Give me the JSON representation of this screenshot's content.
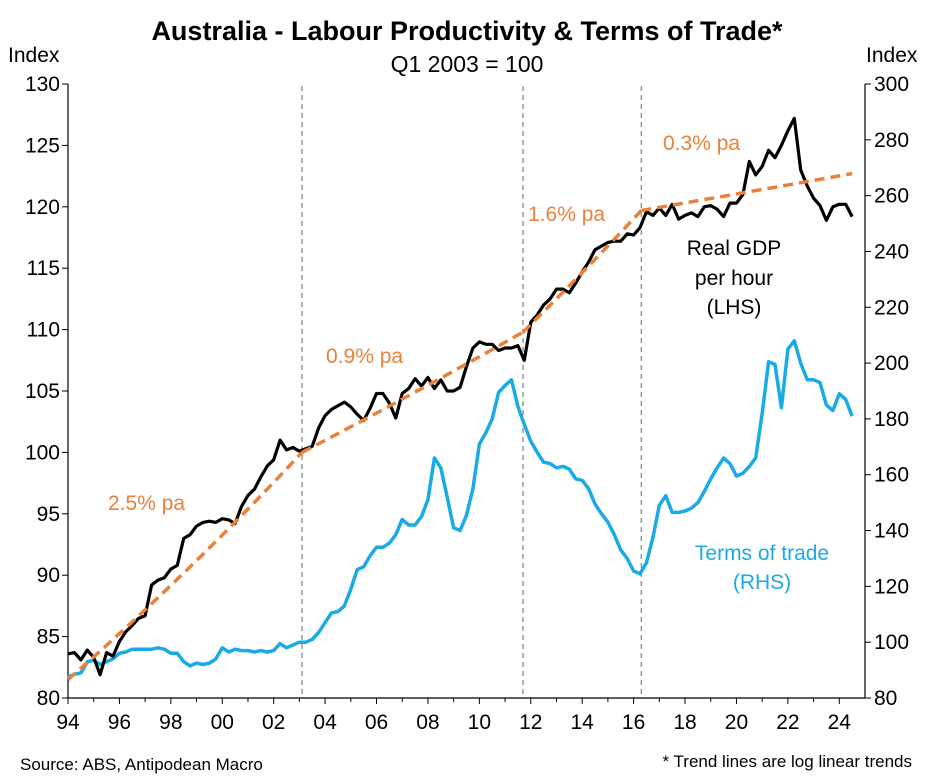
{
  "chart_data": {
    "type": "line",
    "title": "Australia - Labour Productivity & Terms of Trade*",
    "subtitle": "Q1 2003 = 100",
    "left_axis": {
      "unit_label": "Index",
      "min": 80,
      "max": 130,
      "ticks": [
        130,
        125,
        120,
        115,
        110,
        105,
        100,
        95,
        90,
        85,
        80
      ]
    },
    "right_axis": {
      "unit_label": "Index",
      "min": 80,
      "max": 300,
      "ticks": [
        300,
        280,
        260,
        240,
        220,
        200,
        180,
        160,
        140,
        120,
        100,
        80
      ]
    },
    "x_axis": {
      "min": 1994,
      "max": 2025,
      "tick_years": [
        1994,
        1996,
        1998,
        2000,
        2002,
        2004,
        2006,
        2008,
        2010,
        2012,
        2014,
        2016,
        2018,
        2020,
        2022,
        2024
      ],
      "tick_labels": [
        "94",
        "96",
        "98",
        "00",
        "02",
        "04",
        "06",
        "08",
        "10",
        "12",
        "14",
        "16",
        "18",
        "20",
        "22",
        "24"
      ]
    },
    "vertical_breaks": [
      2003.1,
      2011.7,
      2016.3
    ],
    "series": [
      {
        "name": "Real GDP per hour (LHS)",
        "axis": "left",
        "color": "#000000",
        "points": [
          [
            1994.0,
            83.6
          ],
          [
            1994.25,
            83.7
          ],
          [
            1994.5,
            83.1
          ],
          [
            1994.75,
            83.9
          ],
          [
            1995.0,
            83.3
          ],
          [
            1995.25,
            81.9
          ],
          [
            1995.5,
            83.7
          ],
          [
            1995.75,
            83.4
          ],
          [
            1996.0,
            84.6
          ],
          [
            1996.25,
            85.4
          ],
          [
            1996.5,
            85.9
          ],
          [
            1996.75,
            86.5
          ],
          [
            1997.0,
            86.7
          ],
          [
            1997.25,
            89.2
          ],
          [
            1997.5,
            89.6
          ],
          [
            1997.75,
            89.8
          ],
          [
            1998.0,
            90.5
          ],
          [
            1998.25,
            90.8
          ],
          [
            1998.5,
            93.0
          ],
          [
            1998.75,
            93.3
          ],
          [
            1999.0,
            94.0
          ],
          [
            1999.25,
            94.3
          ],
          [
            1999.5,
            94.4
          ],
          [
            1999.75,
            94.3
          ],
          [
            2000.0,
            94.6
          ],
          [
            2000.25,
            94.5
          ],
          [
            2000.5,
            94.2
          ],
          [
            2000.75,
            95.6
          ],
          [
            2001.0,
            96.5
          ],
          [
            2001.25,
            97.0
          ],
          [
            2001.5,
            98.0
          ],
          [
            2001.75,
            98.9
          ],
          [
            2002.0,
            99.4
          ],
          [
            2002.25,
            101.0
          ],
          [
            2002.5,
            100.2
          ],
          [
            2002.75,
            100.4
          ],
          [
            2003.0,
            100.1
          ],
          [
            2003.25,
            100.3
          ],
          [
            2003.5,
            100.5
          ],
          [
            2003.75,
            102.0
          ],
          [
            2004.0,
            103.0
          ],
          [
            2004.25,
            103.5
          ],
          [
            2004.5,
            103.8
          ],
          [
            2004.75,
            104.1
          ],
          [
            2005.0,
            103.7
          ],
          [
            2005.25,
            103.1
          ],
          [
            2005.5,
            102.6
          ],
          [
            2005.75,
            103.6
          ],
          [
            2006.0,
            104.8
          ],
          [
            2006.25,
            104.8
          ],
          [
            2006.5,
            104.0
          ],
          [
            2006.75,
            102.8
          ],
          [
            2007.0,
            104.8
          ],
          [
            2007.25,
            105.2
          ],
          [
            2007.5,
            106.0
          ],
          [
            2007.75,
            105.4
          ],
          [
            2008.0,
            106.1
          ],
          [
            2008.25,
            105.2
          ],
          [
            2008.5,
            105.9
          ],
          [
            2008.75,
            105.0
          ],
          [
            2009.0,
            105.0
          ],
          [
            2009.25,
            105.3
          ],
          [
            2009.5,
            107.0
          ],
          [
            2009.75,
            108.5
          ],
          [
            2010.0,
            109.0
          ],
          [
            2010.25,
            108.8
          ],
          [
            2010.5,
            108.8
          ],
          [
            2010.75,
            108.3
          ],
          [
            2011.0,
            108.5
          ],
          [
            2011.25,
            108.5
          ],
          [
            2011.5,
            108.7
          ],
          [
            2011.75,
            107.5
          ],
          [
            2012.0,
            110.6
          ],
          [
            2012.25,
            111.2
          ],
          [
            2012.5,
            112.0
          ],
          [
            2012.75,
            112.5
          ],
          [
            2013.0,
            113.3
          ],
          [
            2013.25,
            113.3
          ],
          [
            2013.5,
            113.0
          ],
          [
            2013.75,
            113.8
          ],
          [
            2014.0,
            114.7
          ],
          [
            2014.25,
            115.5
          ],
          [
            2014.5,
            116.5
          ],
          [
            2014.75,
            116.8
          ],
          [
            2015.0,
            117.1
          ],
          [
            2015.25,
            117.2
          ],
          [
            2015.5,
            117.2
          ],
          [
            2015.75,
            117.8
          ],
          [
            2016.0,
            117.7
          ],
          [
            2016.25,
            118.3
          ],
          [
            2016.5,
            119.6
          ],
          [
            2016.75,
            119.3
          ],
          [
            2017.0,
            119.9
          ],
          [
            2017.25,
            119.3
          ],
          [
            2017.5,
            120.2
          ],
          [
            2017.75,
            119.0
          ],
          [
            2018.0,
            119.3
          ],
          [
            2018.25,
            119.5
          ],
          [
            2018.5,
            119.2
          ],
          [
            2018.75,
            120.0
          ],
          [
            2019.0,
            120.1
          ],
          [
            2019.25,
            119.8
          ],
          [
            2019.5,
            119.2
          ],
          [
            2019.75,
            120.3
          ],
          [
            2020.0,
            120.3
          ],
          [
            2020.25,
            121.0
          ],
          [
            2020.5,
            123.7
          ],
          [
            2020.75,
            122.6
          ],
          [
            2021.0,
            123.3
          ],
          [
            2021.25,
            124.6
          ],
          [
            2021.5,
            124.0
          ],
          [
            2021.75,
            125.0
          ],
          [
            2022.0,
            126.2
          ],
          [
            2022.25,
            127.2
          ],
          [
            2022.5,
            123.0
          ],
          [
            2022.75,
            121.7
          ],
          [
            2023.0,
            120.7
          ],
          [
            2023.25,
            120.1
          ],
          [
            2023.5,
            118.9
          ],
          [
            2023.75,
            120.0
          ],
          [
            2024.0,
            120.2
          ],
          [
            2024.25,
            120.2
          ],
          [
            2024.5,
            119.2
          ]
        ]
      },
      {
        "name": "Terms of trade (RHS)",
        "axis": "right",
        "color": "#1AAAE6",
        "points": [
          [
            1994.0,
            87.5
          ],
          [
            1994.25,
            88.5
          ],
          [
            1994.5,
            89.0
          ],
          [
            1994.75,
            93.0
          ],
          [
            1995.0,
            93.5
          ],
          [
            1995.25,
            92.0
          ],
          [
            1995.5,
            93.0
          ],
          [
            1995.75,
            94.0
          ],
          [
            1996.0,
            96.0
          ],
          [
            1996.25,
            96.5
          ],
          [
            1996.5,
            97.5
          ],
          [
            1996.75,
            97.5
          ],
          [
            1997.0,
            97.5
          ],
          [
            1997.25,
            97.5
          ],
          [
            1997.5,
            98.0
          ],
          [
            1997.75,
            97.5
          ],
          [
            1998.0,
            96.0
          ],
          [
            1998.25,
            96.0
          ],
          [
            1998.5,
            93.0
          ],
          [
            1998.75,
            91.5
          ],
          [
            1999.0,
            92.5
          ],
          [
            1999.25,
            92.0
          ],
          [
            1999.5,
            92.5
          ],
          [
            1999.75,
            94.0
          ],
          [
            2000.0,
            98.0
          ],
          [
            2000.25,
            96.5
          ],
          [
            2000.5,
            97.5
          ],
          [
            2000.75,
            97.0
          ],
          [
            2001.0,
            97.0
          ],
          [
            2001.25,
            96.5
          ],
          [
            2001.5,
            97.0
          ],
          [
            2001.75,
            96.5
          ],
          [
            2002.0,
            97.0
          ],
          [
            2002.25,
            99.5
          ],
          [
            2002.5,
            98.0
          ],
          [
            2002.75,
            99.0
          ],
          [
            2003.0,
            100.0
          ],
          [
            2003.25,
            100.0
          ],
          [
            2003.5,
            101.0
          ],
          [
            2003.75,
            103.5
          ],
          [
            2004.0,
            107.0
          ],
          [
            2004.25,
            110.5
          ],
          [
            2004.5,
            111.0
          ],
          [
            2004.75,
            113.0
          ],
          [
            2005.0,
            119.0
          ],
          [
            2005.25,
            126.0
          ],
          [
            2005.5,
            127.0
          ],
          [
            2005.75,
            131.0
          ],
          [
            2006.0,
            134.0
          ],
          [
            2006.25,
            134.0
          ],
          [
            2006.5,
            135.5
          ],
          [
            2006.75,
            138.5
          ],
          [
            2007.0,
            144.0
          ],
          [
            2007.25,
            142.0
          ],
          [
            2007.5,
            142.0
          ],
          [
            2007.75,
            145.0
          ],
          [
            2008.0,
            151.0
          ],
          [
            2008.25,
            166.0
          ],
          [
            2008.5,
            162.5
          ],
          [
            2008.75,
            152.0
          ],
          [
            2009.0,
            141.0
          ],
          [
            2009.25,
            140.0
          ],
          [
            2009.5,
            145.5
          ],
          [
            2009.75,
            155.0
          ],
          [
            2010.0,
            171.0
          ],
          [
            2010.25,
            175.0
          ],
          [
            2010.5,
            180.0
          ],
          [
            2010.75,
            189.5
          ],
          [
            2011.0,
            192.0
          ],
          [
            2011.25,
            194.0
          ],
          [
            2011.5,
            184.5
          ],
          [
            2011.75,
            178.0
          ],
          [
            2012.0,
            172.0
          ],
          [
            2012.25,
            168.0
          ],
          [
            2012.5,
            164.5
          ],
          [
            2012.75,
            164.0
          ],
          [
            2013.0,
            162.5
          ],
          [
            2013.25,
            163.0
          ],
          [
            2013.5,
            162.0
          ],
          [
            2013.75,
            158.5
          ],
          [
            2014.0,
            158.0
          ],
          [
            2014.25,
            155.0
          ],
          [
            2014.5,
            149.5
          ],
          [
            2014.75,
            146.0
          ],
          [
            2015.0,
            143.0
          ],
          [
            2015.25,
            138.5
          ],
          [
            2015.5,
            133.0
          ],
          [
            2015.75,
            130.0
          ],
          [
            2016.0,
            125.5
          ],
          [
            2016.25,
            124.5
          ],
          [
            2016.5,
            128.5
          ],
          [
            2016.75,
            137.5
          ],
          [
            2017.0,
            149.0
          ],
          [
            2017.25,
            152.5
          ],
          [
            2017.5,
            146.5
          ],
          [
            2017.75,
            146.5
          ],
          [
            2018.0,
            147.0
          ],
          [
            2018.25,
            148.0
          ],
          [
            2018.5,
            150.0
          ],
          [
            2018.75,
            154.0
          ],
          [
            2019.0,
            158.5
          ],
          [
            2019.25,
            162.5
          ],
          [
            2019.5,
            166.0
          ],
          [
            2019.75,
            164.0
          ],
          [
            2020.0,
            159.5
          ],
          [
            2020.25,
            160.5
          ],
          [
            2020.5,
            163.0
          ],
          [
            2020.75,
            166.0
          ],
          [
            2021.0,
            182.0
          ],
          [
            2021.25,
            200.5
          ],
          [
            2021.5,
            199.5
          ],
          [
            2021.75,
            184.0
          ],
          [
            2022.0,
            205.0
          ],
          [
            2022.25,
            208.0
          ],
          [
            2022.5,
            200.0
          ],
          [
            2022.75,
            194.0
          ],
          [
            2023.0,
            194.0
          ],
          [
            2023.25,
            193.0
          ],
          [
            2023.5,
            185.0
          ],
          [
            2023.75,
            183.0
          ],
          [
            2024.0,
            189.0
          ],
          [
            2024.25,
            187.0
          ],
          [
            2024.5,
            181.0
          ]
        ]
      },
      {
        "name": "Log linear trend",
        "axis": "left",
        "color": "#E8823A",
        "dashed": true,
        "segments": [
          {
            "label": "2.5% pa",
            "start": [
              1994.0,
              81.5
            ],
            "end": [
              2003.1,
              100.0
            ]
          },
          {
            "label": "0.9% pa",
            "start": [
              2003.1,
              100.0
            ],
            "end": [
              2011.7,
              109.8
            ]
          },
          {
            "label": "1.6% pa",
            "start": [
              2011.7,
              109.8
            ],
            "end": [
              2016.3,
              119.7
            ]
          },
          {
            "label": "0.3% pa",
            "start": [
              2016.3,
              119.7
            ],
            "end": [
              2024.5,
              122.7
            ]
          }
        ]
      }
    ],
    "annotations": {
      "trend_labels": [
        "2.5% pa",
        "0.9% pa",
        "1.6% pa",
        "0.3% pa"
      ],
      "gdp_label": [
        "Real GDP",
        "per hour",
        "(LHS)"
      ],
      "tot_label": [
        "Terms of trade",
        "(RHS)"
      ]
    }
  },
  "footer": {
    "source": "Source: ABS, Antipodean Macro",
    "note": "* Trend lines are log linear trends"
  }
}
